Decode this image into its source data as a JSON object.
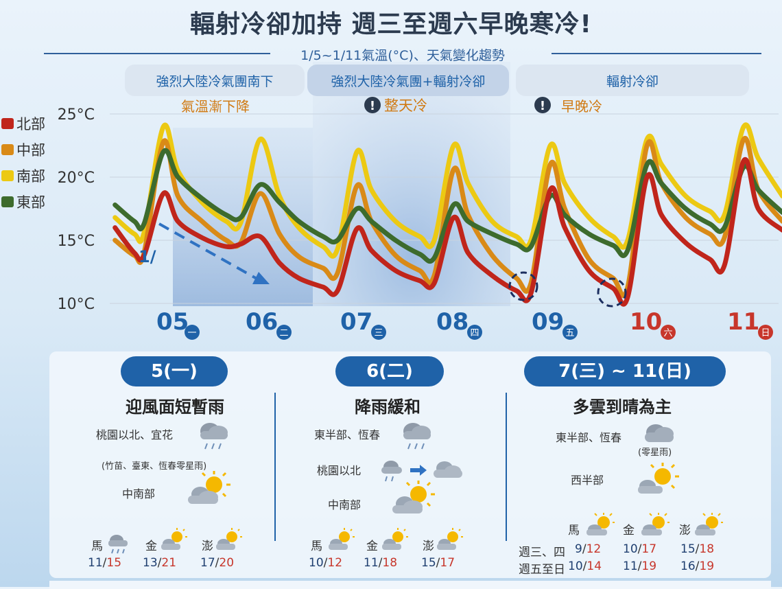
{
  "title": "輻射冷卻加持 週三至週六早晚寒冷!",
  "subtitle": "1/5~1/11氣溫(°C)、天氣變化趨勢",
  "phases": [
    {
      "label": "強烈大陸冷氣團南下",
      "note": "氣溫漸下降",
      "alert": false
    },
    {
      "label": "強烈大陸冷氣團+輻射冷卻",
      "note": "整天冷",
      "alert": true
    },
    {
      "label": "輻射冷卻",
      "note": "早晚冷",
      "alert": true
    }
  ],
  "colors": {
    "north": "#c0251b",
    "central": "#d98a17",
    "south": "#ecc913",
    "east": "#3d6b2d",
    "accent": "#1f62a8",
    "weekend": "#c7362b"
  },
  "chart_data": {
    "type": "line",
    "ylabel": "",
    "ylim": [
      10,
      25
    ],
    "yticks": [
      "25°C",
      "20°C",
      "15°C",
      "10°C"
    ],
    "dates": [
      {
        "date": "1/05",
        "weekday": "一",
        "weekend": false
      },
      {
        "date": "06",
        "weekday": "二",
        "weekend": false
      },
      {
        "date": "07",
        "weekday": "三",
        "weekend": false
      },
      {
        "date": "08",
        "weekday": "四",
        "weekend": false
      },
      {
        "date": "09",
        "weekday": "五",
        "weekend": false
      },
      {
        "date": "10",
        "weekday": "六",
        "weekend": true
      },
      {
        "date": "11",
        "weekday": "日",
        "weekend": true
      }
    ],
    "x_unit": "days from 1/05 00:00",
    "series": [
      {
        "name": "北部",
        "color": "#c0251b",
        "points": [
          [
            -0.3,
            16.0
          ],
          [
            -0.1,
            14.0
          ],
          [
            0.0,
            13.8
          ],
          [
            0.2,
            18.7
          ],
          [
            0.35,
            16.5
          ],
          [
            0.6,
            15.2
          ],
          [
            0.85,
            14.5
          ],
          [
            1.0,
            14.7
          ],
          [
            1.2,
            15.3
          ],
          [
            1.4,
            13.2
          ],
          [
            1.6,
            12.0
          ],
          [
            1.85,
            11.3
          ],
          [
            2.0,
            11.0
          ],
          [
            2.2,
            15.9
          ],
          [
            2.35,
            14.2
          ],
          [
            2.6,
            12.6
          ],
          [
            2.85,
            11.8
          ],
          [
            3.0,
            11.6
          ],
          [
            3.2,
            16.8
          ],
          [
            3.35,
            14.0
          ],
          [
            3.6,
            12.2
          ],
          [
            3.85,
            11.0
          ],
          [
            4.0,
            10.8
          ],
          [
            4.2,
            19.0
          ],
          [
            4.35,
            16.0
          ],
          [
            4.6,
            12.6
          ],
          [
            4.85,
            11.2
          ],
          [
            5.0,
            10.5
          ],
          [
            5.2,
            20.0
          ],
          [
            5.35,
            17.0
          ],
          [
            5.6,
            14.8
          ],
          [
            5.85,
            13.5
          ],
          [
            6.0,
            13.0
          ],
          [
            6.2,
            21.3
          ],
          [
            6.35,
            17.5
          ],
          [
            6.6,
            15.8
          ]
        ]
      },
      {
        "name": "中部",
        "color": "#d98a17",
        "points": [
          [
            -0.3,
            15.0
          ],
          [
            -0.1,
            13.8
          ],
          [
            0.0,
            14.0
          ],
          [
            0.2,
            22.8
          ],
          [
            0.35,
            18.5
          ],
          [
            0.6,
            16.5
          ],
          [
            0.85,
            15.0
          ],
          [
            1.0,
            14.8
          ],
          [
            1.2,
            18.7
          ],
          [
            1.4,
            15.5
          ],
          [
            1.6,
            13.7
          ],
          [
            1.85,
            12.8
          ],
          [
            2.0,
            12.4
          ],
          [
            2.2,
            19.3
          ],
          [
            2.35,
            16.5
          ],
          [
            2.6,
            13.8
          ],
          [
            2.85,
            12.6
          ],
          [
            3.0,
            12.2
          ],
          [
            3.2,
            20.6
          ],
          [
            3.35,
            17.0
          ],
          [
            3.6,
            13.8
          ],
          [
            3.85,
            12.0
          ],
          [
            4.0,
            11.6
          ],
          [
            4.2,
            21.0
          ],
          [
            4.35,
            17.5
          ],
          [
            4.6,
            13.5
          ],
          [
            4.85,
            12.0
          ],
          [
            5.0,
            11.3
          ],
          [
            5.2,
            22.5
          ],
          [
            5.35,
            19.5
          ],
          [
            5.6,
            16.8
          ],
          [
            5.85,
            15.5
          ],
          [
            6.0,
            15.2
          ],
          [
            6.2,
            23.0
          ],
          [
            6.35,
            19.0
          ],
          [
            6.6,
            16.5
          ]
        ]
      },
      {
        "name": "南部",
        "color": "#ecc913",
        "points": [
          [
            -0.3,
            16.8
          ],
          [
            -0.1,
            15.5
          ],
          [
            0.0,
            15.6
          ],
          [
            0.2,
            24.0
          ],
          [
            0.35,
            20.5
          ],
          [
            0.6,
            18.0
          ],
          [
            0.85,
            16.5
          ],
          [
            1.0,
            16.4
          ],
          [
            1.2,
            23.0
          ],
          [
            1.4,
            18.5
          ],
          [
            1.6,
            16.0
          ],
          [
            1.85,
            14.5
          ],
          [
            2.0,
            14.3
          ],
          [
            2.2,
            22.0
          ],
          [
            2.35,
            19.0
          ],
          [
            2.6,
            16.5
          ],
          [
            2.85,
            15.3
          ],
          [
            3.0,
            15.0
          ],
          [
            3.2,
            22.5
          ],
          [
            3.35,
            19.5
          ],
          [
            3.6,
            16.5
          ],
          [
            3.85,
            15.3
          ],
          [
            4.0,
            15.0
          ],
          [
            4.2,
            22.5
          ],
          [
            4.35,
            19.5
          ],
          [
            4.6,
            16.8
          ],
          [
            4.85,
            15.3
          ],
          [
            5.0,
            15.0
          ],
          [
            5.2,
            23.0
          ],
          [
            5.35,
            21.0
          ],
          [
            5.6,
            18.5
          ],
          [
            5.85,
            17.3
          ],
          [
            6.0,
            17.0
          ],
          [
            6.2,
            24.0
          ],
          [
            6.35,
            21.5
          ],
          [
            6.6,
            18.5
          ]
        ]
      },
      {
        "name": "東部",
        "color": "#3d6b2d",
        "points": [
          [
            -0.3,
            17.8
          ],
          [
            -0.1,
            16.5
          ],
          [
            0.0,
            16.3
          ],
          [
            0.2,
            22.0
          ],
          [
            0.35,
            20.0
          ],
          [
            0.6,
            18.3
          ],
          [
            0.85,
            17.0
          ],
          [
            1.0,
            16.8
          ],
          [
            1.2,
            19.4
          ],
          [
            1.4,
            18.0
          ],
          [
            1.6,
            16.5
          ],
          [
            1.85,
            15.3
          ],
          [
            2.0,
            15.0
          ],
          [
            2.2,
            17.5
          ],
          [
            2.35,
            16.5
          ],
          [
            2.6,
            15.0
          ],
          [
            2.85,
            13.9
          ],
          [
            3.0,
            13.6
          ],
          [
            3.2,
            17.8
          ],
          [
            3.35,
            16.5
          ],
          [
            3.6,
            15.5
          ],
          [
            3.85,
            14.7
          ],
          [
            4.0,
            14.5
          ],
          [
            4.2,
            18.5
          ],
          [
            4.35,
            17.0
          ],
          [
            4.6,
            15.5
          ],
          [
            4.85,
            14.6
          ],
          [
            5.0,
            14.2
          ],
          [
            5.2,
            21.0
          ],
          [
            5.35,
            19.5
          ],
          [
            5.6,
            17.5
          ],
          [
            5.85,
            16.3
          ],
          [
            6.0,
            16.0
          ],
          [
            6.2,
            20.8
          ],
          [
            6.35,
            19.0
          ],
          [
            6.6,
            17.2
          ]
        ]
      }
    ]
  },
  "forecast": {
    "day1": {
      "pill": "5(一)",
      "title": "迎風面短暫雨",
      "rows": [
        {
          "loc": "桃園以北、宜花",
          "icon": "cloud-rain-icon"
        },
        {
          "loc": "(竹苗、臺東、恆春零星雨)",
          "icon": ""
        },
        {
          "loc": "中南部",
          "icon": "sun-cloud-icon"
        }
      ],
      "islands": [
        {
          "name": "馬",
          "icon": "cloud-rain-icon",
          "low": "11",
          "high": "15"
        },
        {
          "name": "金",
          "icon": "sun-cloud-icon",
          "low": "13",
          "high": "21"
        },
        {
          "name": "澎",
          "icon": "sun-cloud-icon",
          "low": "17",
          "high": "20"
        }
      ]
    },
    "day2": {
      "pill": "6(二)",
      "title": "降雨緩和",
      "rows": [
        {
          "loc": "東半部、恆春",
          "icon": "cloud-rain-icon"
        },
        {
          "loc": "桃園以北",
          "icon": "rain-to-cloud-icon"
        },
        {
          "loc": "中南部",
          "icon": "sun-cloud-icon"
        }
      ],
      "islands": [
        {
          "name": "馬",
          "icon": "sun-cloud-icon",
          "low": "10",
          "high": "12"
        },
        {
          "name": "金",
          "icon": "sun-cloud-icon",
          "low": "11",
          "high": "18"
        },
        {
          "name": "澎",
          "icon": "sun-cloud-icon",
          "low": "15",
          "high": "17"
        }
      ]
    },
    "day3": {
      "pill": "7(三) ~ 11(日)",
      "title": "多雲到晴為主",
      "rows": [
        {
          "loc": "東半部、恆春",
          "icon": "cloud-icon"
        },
        {
          "loc": "(零星雨)",
          "icon": ""
        },
        {
          "loc": "西半部",
          "icon": "sun-cloud-icon"
        }
      ],
      "islands": [
        "馬",
        "金",
        "澎"
      ],
      "periods": [
        {
          "label": "週三、四",
          "temps": [
            {
              "low": "9",
              "high": "12"
            },
            {
              "low": "10",
              "high": "17"
            },
            {
              "low": "15",
              "high": "18"
            }
          ]
        },
        {
          "label": "週五至日",
          "temps": [
            {
              "low": "10",
              "high": "14"
            },
            {
              "low": "11",
              "high": "19"
            },
            {
              "low": "16",
              "high": "19"
            }
          ]
        }
      ]
    }
  }
}
